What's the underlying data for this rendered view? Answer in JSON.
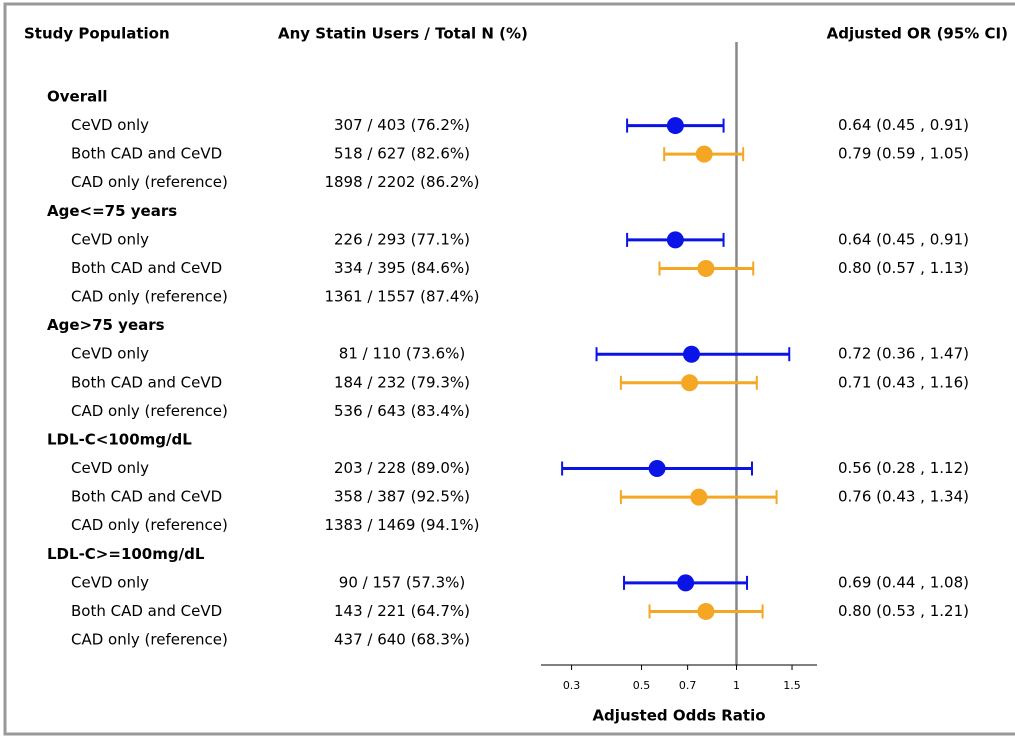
{
  "chart_data": {
    "type": "forest",
    "column_headers": [
      "Study Population",
      "Any Statin Users / Total N (%)",
      "Adjusted OR (95% CI)"
    ],
    "x_label": "Adjusted Odds Ratio",
    "x_scale": "log",
    "xlim": [
      0.24,
      1.8
    ],
    "xticks": [
      0.3,
      0.5,
      0.7,
      1,
      1.5
    ],
    "reference_line": 1,
    "groups": [
      {
        "name": "Overall",
        "rows": [
          {
            "label": "CeVD only",
            "users": "307 / 403 (76.2%)",
            "or": 0.64,
            "lower": 0.45,
            "upper": 0.91,
            "or_label": "0.64 (0.45 , 0.91)",
            "color": "#0a14e6"
          },
          {
            "label": "Both CAD and CeVD",
            "users": "518 / 627 (82.6%)",
            "or": 0.79,
            "lower": 0.59,
            "upper": 1.05,
            "or_label": "0.79 (0.59 , 1.05)",
            "color": "#f5a623"
          },
          {
            "label": "CAD only (reference)",
            "users": "1898 / 2202 (86.2%)"
          }
        ]
      },
      {
        "name": "Age<=75 years",
        "rows": [
          {
            "label": "CeVD only",
            "users": "226 / 293 (77.1%)",
            "or": 0.64,
            "lower": 0.45,
            "upper": 0.91,
            "or_label": "0.64 (0.45 , 0.91)",
            "color": "#0a14e6"
          },
          {
            "label": "Both CAD and CeVD",
            "users": "334 / 395 (84.6%)",
            "or": 0.8,
            "lower": 0.57,
            "upper": 1.13,
            "or_label": "0.80 (0.57 , 1.13)",
            "color": "#f5a623"
          },
          {
            "label": "CAD only (reference)",
            "users": "1361 / 1557 (87.4%)"
          }
        ]
      },
      {
        "name": "Age>75 years",
        "rows": [
          {
            "label": "CeVD only",
            "users": "81 / 110 (73.6%)",
            "or": 0.72,
            "lower": 0.36,
            "upper": 1.47,
            "or_label": "0.72 (0.36 , 1.47)",
            "color": "#0a14e6"
          },
          {
            "label": "Both CAD and CeVD",
            "users": "184 / 232 (79.3%)",
            "or": 0.71,
            "lower": 0.43,
            "upper": 1.16,
            "or_label": "0.71 (0.43 , 1.16)",
            "color": "#f5a623"
          },
          {
            "label": "CAD only (reference)",
            "users": "536 / 643 (83.4%)"
          }
        ]
      },
      {
        "name": "LDL-C<100mg/dL",
        "rows": [
          {
            "label": "CeVD only",
            "users": "203 / 228 (89.0%)",
            "or": 0.56,
            "lower": 0.28,
            "upper": 1.12,
            "or_label": "0.56 (0.28 , 1.12)",
            "color": "#0a14e6"
          },
          {
            "label": "Both CAD and CeVD",
            "users": "358 / 387 (92.5%)",
            "or": 0.76,
            "lower": 0.43,
            "upper": 1.34,
            "or_label": "0.76 (0.43 , 1.34)",
            "color": "#f5a623"
          },
          {
            "label": "CAD only (reference)",
            "users": "1383 / 1469 (94.1%)"
          }
        ]
      },
      {
        "name": "LDL-C>=100mg/dL",
        "rows": [
          {
            "label": "CeVD only",
            "users": "90 / 157 (57.3%)",
            "or": 0.69,
            "lower": 0.44,
            "upper": 1.08,
            "or_label": "0.69 (0.44 , 1.08)",
            "color": "#0a14e6"
          },
          {
            "label": "Both CAD and CeVD",
            "users": "143 / 221 (64.7%)",
            "or": 0.8,
            "lower": 0.53,
            "upper": 1.21,
            "or_label": "0.80 (0.53 , 1.21)",
            "color": "#f5a623"
          },
          {
            "label": "CAD only (reference)",
            "users": "437 / 640 (68.3%)"
          }
        ]
      }
    ]
  }
}
